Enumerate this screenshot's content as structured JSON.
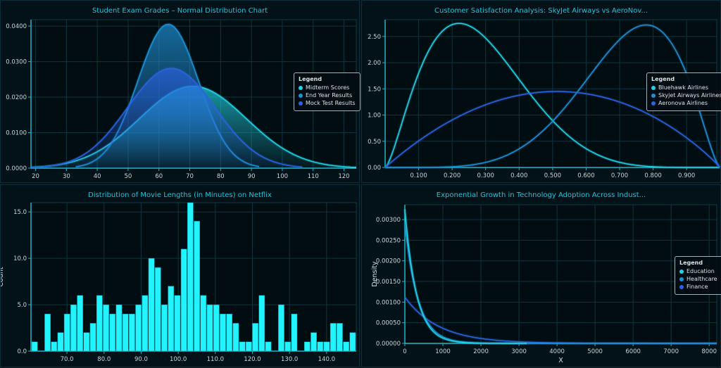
{
  "colors": {
    "cyan": "#22d3e6",
    "mid": "#1e90d6",
    "blue": "#2a62e0",
    "bar": "#22f4ff",
    "axis": "#1fb7c9",
    "grid": "#0e3540"
  },
  "chart_data": [
    {
      "type": "area",
      "title": "Student Exam Grades – Normal Distribution Chart",
      "xlabel": "",
      "ylabel": "",
      "xlim": [
        18.5,
        124
      ],
      "ylim": [
        0,
        0.0418
      ],
      "xticks": [
        "20",
        "30",
        "40",
        "50",
        "60",
        "70",
        "80",
        "90",
        "100",
        "110",
        "120"
      ],
      "yticks": [
        "0.0000",
        "0.0100",
        "0.0200",
        "0.0300",
        "0.0400"
      ],
      "legend": {
        "title": "Legend",
        "position": "right"
      },
      "series": [
        {
          "name": "Midterm Scores",
          "distribution": "normal",
          "mean": 71,
          "sd": 17.3,
          "range": [
            18.5,
            124
          ],
          "color": "cyan"
        },
        {
          "name": "End Year Results",
          "distribution": "normal",
          "mean": 63,
          "sd": 9.85,
          "range": [
            33,
            92.5
          ],
          "color": "mid"
        },
        {
          "name": "Mock Test Results",
          "distribution": "normal",
          "mean": 64,
          "sd": 14.2,
          "range": [
            18.5,
            106.5
          ],
          "color": "blue"
        }
      ]
    },
    {
      "type": "line",
      "title": "Customer Satisfaction Analysis: SkyJet Airways vs AeroNov...",
      "xlabel": "",
      "ylabel": "",
      "xlim": [
        0,
        0.99
      ],
      "ylim": [
        0,
        2.82
      ],
      "xticks": [
        "0.100",
        "0.200",
        "0.300",
        "0.400",
        "0.500",
        "0.600",
        "0.700",
        "0.800",
        "0.900"
      ],
      "yticks": [
        "0.00",
        "0.50",
        "1.00",
        "1.50",
        "2.00",
        "2.50"
      ],
      "legend": {
        "title": "Legend",
        "position": "right"
      },
      "series": [
        {
          "name": "Bluehawk Airlines",
          "distribution": "beta",
          "a": 2.5,
          "b": 6.3,
          "peak": 2.75,
          "color": "cyan"
        },
        {
          "name": "Skyjet Airways Airlines",
          "distribution": "beta",
          "a": 6.3,
          "b": 2.5,
          "peak": 2.72,
          "color": "mid"
        },
        {
          "name": "Aeronova Airlines",
          "distribution": "beta",
          "a": 2,
          "b": 1.95,
          "peak": 1.45,
          "color": "blue"
        }
      ]
    },
    {
      "type": "bar",
      "title": "Distribution of Movie Lengths (in Minutes) on Netflix",
      "xlabel": "",
      "ylabel": "Count",
      "xlim": [
        60.3,
        148
      ],
      "ylim": [
        0,
        16
      ],
      "bin_start": 60.4,
      "bin_width": 1.75,
      "values": [
        1,
        0,
        4,
        1,
        2,
        4,
        5,
        6,
        2,
        3,
        6,
        5,
        4,
        5,
        4,
        4,
        5,
        6,
        10,
        9,
        5,
        7,
        6,
        11,
        16,
        14,
        6,
        5,
        5,
        4,
        4,
        3,
        1,
        1,
        3,
        6,
        1,
        0,
        5,
        1,
        4,
        0,
        1,
        2,
        1,
        1,
        3,
        3,
        1,
        2
      ],
      "xticks": [
        "70.0",
        "80.0",
        "90.0",
        "100.0",
        "110.0",
        "120.0",
        "130.0",
        "140.0"
      ],
      "yticks": [
        "0.0",
        "5.0",
        "10.0",
        "15.0"
      ]
    },
    {
      "type": "line",
      "title": "Exponential Growth in Technology Adoption Across Indust...",
      "xlabel": "X",
      "ylabel": "Density",
      "xlim": [
        0,
        8200
      ],
      "ylim": [
        0,
        0.00336
      ],
      "xticks": [
        "0",
        "1000",
        "2000",
        "3000",
        "4000",
        "5000",
        "6000",
        "7000",
        "8000"
      ],
      "yticks": [
        "0.00000",
        "0.00050",
        "0.00100",
        "0.00150",
        "0.00200",
        "0.00250",
        "0.00300"
      ],
      "legend": {
        "title": "Legend",
        "position": "right"
      },
      "series": [
        {
          "name": "Education",
          "distribution": "exponential",
          "rate": 0.00325,
          "range": [
            0,
            3200
          ],
          "color": "cyan"
        },
        {
          "name": "Healthcare",
          "distribution": "exponential",
          "rate": 0.0029,
          "range": [
            0,
            8200
          ],
          "color": "mid"
        },
        {
          "name": "Finance",
          "distribution": "exponential",
          "rate": 0.00112,
          "range": [
            0,
            8200
          ],
          "color": "blue"
        }
      ]
    }
  ]
}
